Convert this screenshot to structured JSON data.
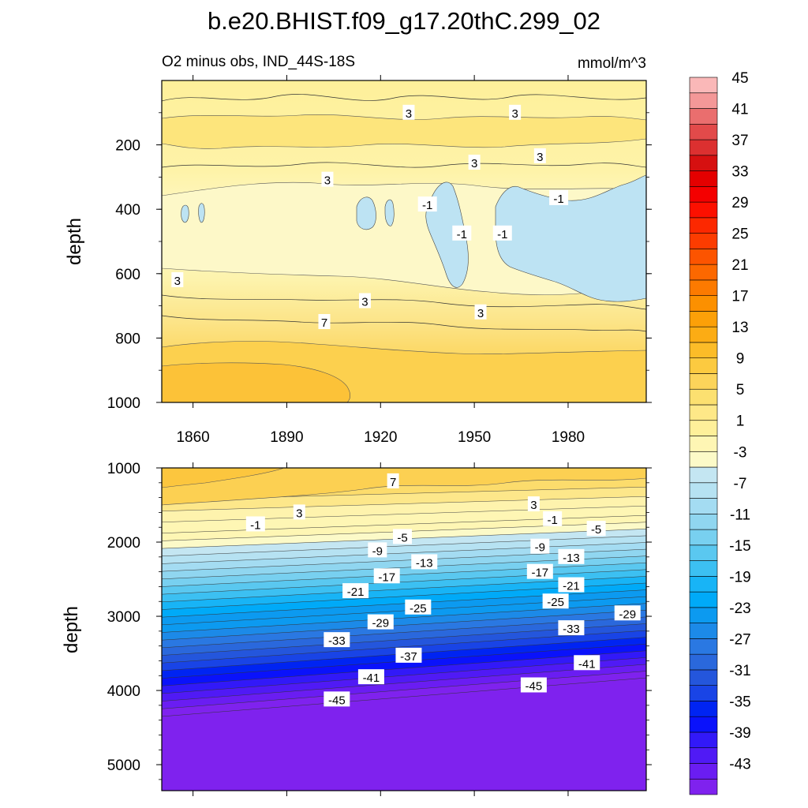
{
  "chart_data": [
    {
      "type": "heatmap",
      "title": "b.e20.BHIST.f09_g17.20thC.299_02",
      "subtitle_left": "O2 minus obs, IND_44S-18S",
      "subtitle_right": "mmol/m^3",
      "panel": "upper",
      "xlabel": "",
      "ylabel": "depth",
      "xlim": [
        1850,
        2005
      ],
      "ylim": [
        1000,
        0
      ],
      "x_ticks": [
        "1860",
        "1890",
        "1920",
        "1950",
        "1980"
      ],
      "y_ticks": [
        "200",
        "400",
        "600",
        "800",
        "1000"
      ],
      "contour_labels": [
        {
          "text": "3",
          "year": 1929,
          "depth": 100
        },
        {
          "text": "3",
          "year": 1963,
          "depth": 100
        },
        {
          "text": "3",
          "year": 1950,
          "depth": 255
        },
        {
          "text": "3",
          "year": 1971,
          "depth": 235
        },
        {
          "text": "3",
          "year": 1903,
          "depth": 308
        },
        {
          "text": "-1",
          "year": 1935,
          "depth": 385
        },
        {
          "text": "-1",
          "year": 1977,
          "depth": 365
        },
        {
          "text": "-1",
          "year": 1946,
          "depth": 475
        },
        {
          "text": "-1",
          "year": 1959,
          "depth": 475
        },
        {
          "text": "3",
          "year": 1855,
          "depth": 620
        },
        {
          "text": "3",
          "year": 1915,
          "depth": 685
        },
        {
          "text": "7",
          "year": 1902,
          "depth": 750
        },
        {
          "text": "3",
          "year": 1952,
          "depth": 720
        }
      ]
    },
    {
      "type": "heatmap",
      "panel": "lower",
      "xlabel": "",
      "ylabel": "depth",
      "xlim": [
        1850,
        2005
      ],
      "ylim": [
        5350,
        1000
      ],
      "y_ticks": [
        "1000",
        "2000",
        "3000",
        "4000",
        "5000"
      ],
      "contour_labels": [
        {
          "text": "7",
          "year": 1924,
          "depth": 1180
        },
        {
          "text": "3",
          "year": 1894,
          "depth": 1600
        },
        {
          "text": "3",
          "year": 1969,
          "depth": 1490
        },
        {
          "text": "-1",
          "year": 1880,
          "depth": 1760
        },
        {
          "text": "-1",
          "year": 1975,
          "depth": 1690
        },
        {
          "text": "-5",
          "year": 1927,
          "depth": 1930
        },
        {
          "text": "-5",
          "year": 1989,
          "depth": 1820
        },
        {
          "text": "-9",
          "year": 1919,
          "depth": 2110
        },
        {
          "text": "-9",
          "year": 1971,
          "depth": 2060
        },
        {
          "text": "-13",
          "year": 1934,
          "depth": 2270
        },
        {
          "text": "-13",
          "year": 1981,
          "depth": 2200
        },
        {
          "text": "-17",
          "year": 1922,
          "depth": 2460
        },
        {
          "text": "-17",
          "year": 1971,
          "depth": 2400
        },
        {
          "text": "-21",
          "year": 1912,
          "depth": 2660
        },
        {
          "text": "-21",
          "year": 1981,
          "depth": 2580
        },
        {
          "text": "-25",
          "year": 1932,
          "depth": 2880
        },
        {
          "text": "-25",
          "year": 1976,
          "depth": 2800
        },
        {
          "text": "-29",
          "year": 1920,
          "depth": 3080
        },
        {
          "text": "-29",
          "year": 1999,
          "depth": 2960
        },
        {
          "text": "-33",
          "year": 1906,
          "depth": 3320
        },
        {
          "text": "-33",
          "year": 1981,
          "depth": 3160
        },
        {
          "text": "-37",
          "year": 1929,
          "depth": 3530
        },
        {
          "text": "-41",
          "year": 1917,
          "depth": 3820
        },
        {
          "text": "-41",
          "year": 1986,
          "depth": 3630
        },
        {
          "text": "-45",
          "year": 1906,
          "depth": 4120
        },
        {
          "text": "-45",
          "year": 1969,
          "depth": 3930
        }
      ]
    }
  ],
  "colorbar": {
    "levels": [
      -45,
      -43,
      -41,
      -39,
      -37,
      -35,
      -33,
      -31,
      -29,
      -27,
      -25,
      -23,
      -21,
      -19,
      -17,
      -15,
      -13,
      -11,
      -9,
      -7,
      -5,
      -3,
      -1,
      1,
      3,
      5,
      7,
      9,
      11,
      13,
      15,
      17,
      19,
      21,
      23,
      25,
      27,
      29,
      31,
      33,
      35,
      37,
      39,
      41,
      43,
      45
    ],
    "labels": [
      "-43",
      "-39",
      "-35",
      "-31",
      "-27",
      "-23",
      "-19",
      "-15",
      "-11",
      "-7",
      "-3",
      "1",
      "5",
      "9",
      "13",
      "17",
      "21",
      "25",
      "29",
      "33",
      "37",
      "41",
      "45"
    ],
    "colors": [
      "#7f22ee",
      "#6a1df2",
      "#501af5",
      "#3219f8",
      "#0a12fb",
      "#0024f2",
      "#1944e6",
      "#2456dc",
      "#2a68dc",
      "#2a78e2",
      "#1c8ae8",
      "#0c9af0",
      "#00aaf8",
      "#18b4f6",
      "#3cc0f2",
      "#5ac8f0",
      "#78d0f0",
      "#90d6f0",
      "#a4dcf2",
      "#b6e2f2",
      "#c4e6f2",
      "#fcfac8",
      "#fef6b4",
      "#fef09a",
      "#fee888",
      "#fce070",
      "#fcd45a",
      "#fcca40",
      "#fcbc28",
      "#fcac14",
      "#fca008",
      "#fc9000",
      "#fc7a00",
      "#fc6800",
      "#fc5400",
      "#fc3c00",
      "#fc2800",
      "#fc1000",
      "#f40000",
      "#e40000",
      "#d61010",
      "#dc3030",
      "#e24a4a",
      "#ea6e6e",
      "#f49898",
      "#fab8b8"
    ]
  }
}
